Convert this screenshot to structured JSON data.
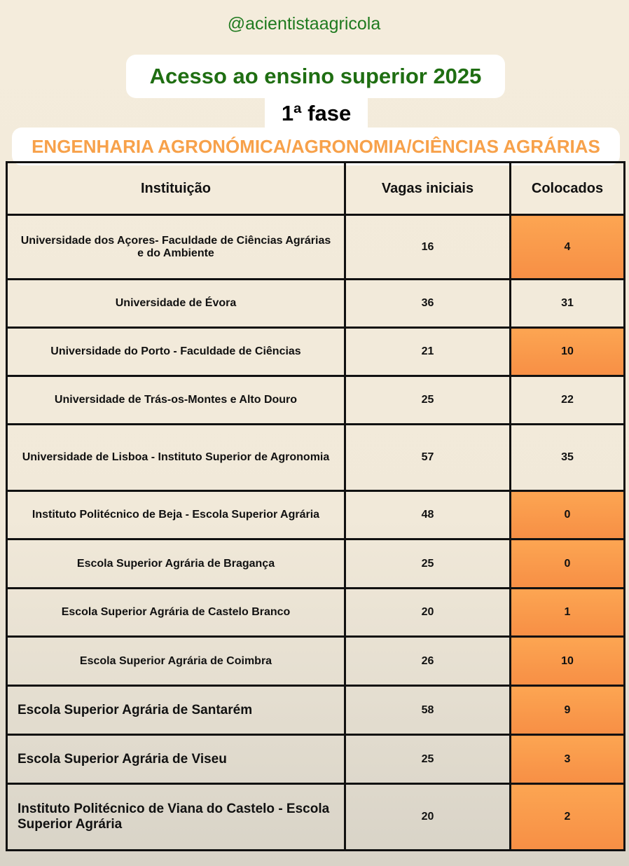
{
  "handle": "@acientistaagricola",
  "title": "Acesso ao ensino superior 2025",
  "phase": "1ª fase",
  "course": "ENGENHARIA AGRONÓMICA/AGRONOMIA/CIÊNCIAS AGRÁRIAS",
  "colors": {
    "title": "#1f6e12",
    "course": "#f7a14a",
    "highlight": "#fa9a4c"
  },
  "table": {
    "headers": [
      "Instituição",
      "Vagas iniciais",
      "Colocados"
    ],
    "rows": [
      {
        "inst": "Universidade dos Açores- Faculdade de Ciências Agrárias e do Ambiente",
        "vagas": "16",
        "colocados": "4",
        "highlight": true,
        "h": 92
      },
      {
        "inst": "Universidade de Évora",
        "vagas": "36",
        "colocados": "31",
        "highlight": false,
        "h": 69
      },
      {
        "inst": "Universidade do Porto - Faculdade de Ciências",
        "vagas": "21",
        "colocados": "10",
        "highlight": true,
        "h": 69
      },
      {
        "inst": "Universidade de Trás-os-Montes e Alto Douro",
        "vagas": "25",
        "colocados": "22",
        "highlight": false,
        "h": 69
      },
      {
        "inst": "Universidade de Lisboa - Instituto Superior de Agronomia",
        "vagas": "57",
        "colocados": "35",
        "highlight": false,
        "h": 95
      },
      {
        "inst": "Instituto Politécnico de Beja - Escola Superior Agrária",
        "vagas": "48",
        "colocados": "0",
        "highlight": true,
        "h": 69
      },
      {
        "inst": "Escola Superior Agrária de Bragança",
        "vagas": "25",
        "colocados": "0",
        "highlight": true,
        "h": 70
      },
      {
        "inst": "Escola Superior Agrária de Castelo Branco",
        "vagas": "20",
        "colocados": "1",
        "highlight": true,
        "h": 69
      },
      {
        "inst": "Escola Superior Agrária de Coimbra",
        "vagas": "26",
        "colocados": "10",
        "highlight": true,
        "h": 70
      },
      {
        "inst": "Escola Superior Agrária de Santarém",
        "vagas": "58",
        "colocados": "9",
        "highlight": true,
        "h": 70,
        "left": true
      },
      {
        "inst": "Escola Superior Agrária de Viseu",
        "vagas": "25",
        "colocados": "3",
        "highlight": true,
        "h": 70,
        "left": true
      },
      {
        "inst": "Instituto Politécnico de Viana do Castelo - Escola Superior Agrária",
        "vagas": "20",
        "colocados": "2",
        "highlight": true,
        "h": 95,
        "left": true
      }
    ]
  }
}
